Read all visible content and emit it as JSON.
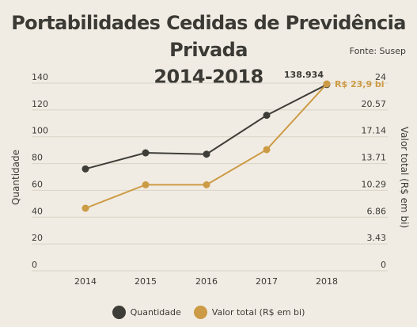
{
  "header": {
    "title_line1": "Portabilidades Cedidas de Previdência Privada",
    "title_line2": "2014-2018",
    "source": "Fonte: Susep"
  },
  "chart_data": {
    "type": "line",
    "categories": [
      "2014",
      "2015",
      "2016",
      "2017",
      "2018"
    ],
    "series": [
      {
        "name": "Quantidade",
        "axis": "left",
        "color": "#3e3d37",
        "values": [
          76,
          88,
          87,
          116,
          138.934
        ]
      },
      {
        "name": "Valor total (R$ em bi)",
        "axis": "right",
        "color": "#cc9b45",
        "values": [
          8.0,
          11.0,
          11.0,
          15.5,
          23.9
        ]
      }
    ],
    "ylabel_left": "Quantidade",
    "ylabel_right": "Valor total (R$ em bi)",
    "ylim_left": [
      0,
      140
    ],
    "ylim_right": [
      0,
      24
    ],
    "yticks_left": [
      "0",
      "20",
      "40",
      "60",
      "80",
      "100",
      "120",
      "140"
    ],
    "yticks_right": [
      "0",
      "3.43",
      "6.86",
      "10.29",
      "13.71",
      "17.14",
      "20.57",
      "24"
    ],
    "grid": true,
    "legend_position": "bottom",
    "annotations": [
      {
        "series": "Quantidade",
        "category": "2018",
        "text": "138.934"
      },
      {
        "series": "Valor total (R$ em bi)",
        "category": "2018",
        "text": "R$ 23,9 bi"
      }
    ]
  }
}
